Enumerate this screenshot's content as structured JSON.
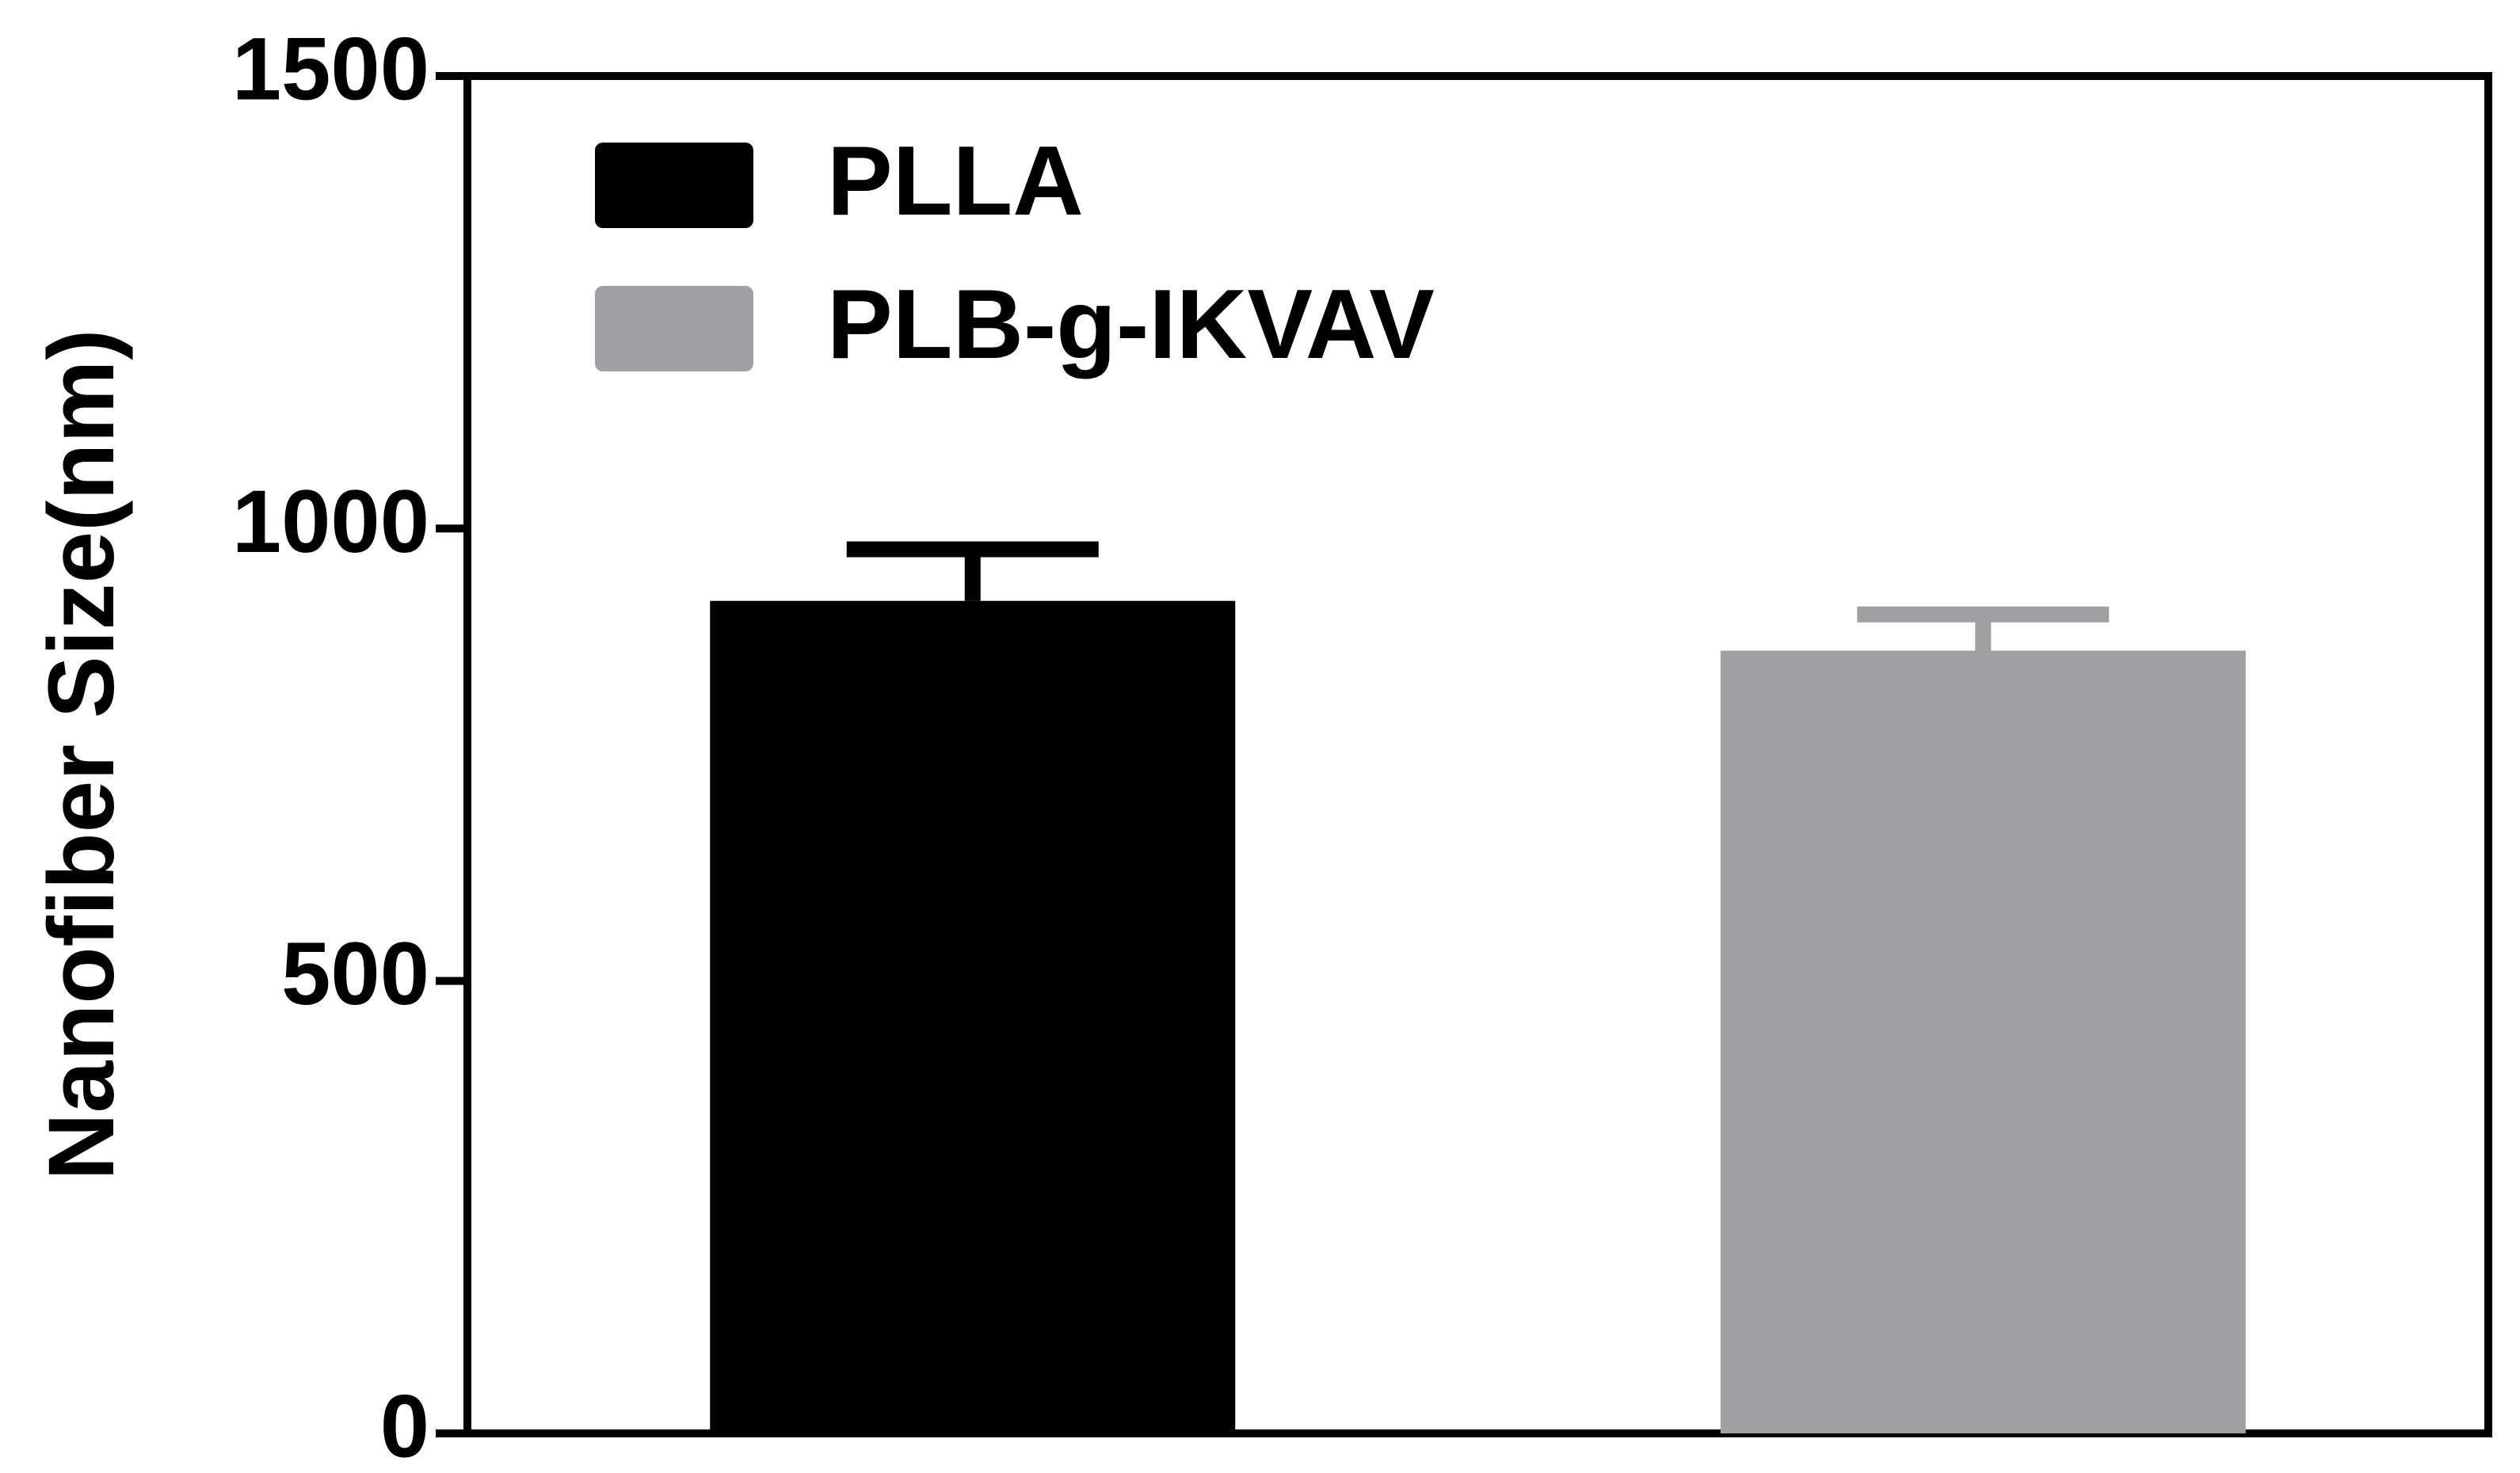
{
  "chart_data": {
    "type": "bar",
    "y_label": "Nanofiber Size(nm)",
    "categories": [
      null
    ],
    "series": [
      {
        "name": "PLLA",
        "color": "#000000",
        "values": [
          920
        ],
        "errors": [
          57
        ]
      },
      {
        "name": "PLB-g-IKVAV",
        "color": "#a0a0a4",
        "values": [
          865
        ],
        "errors": [
          40
        ]
      }
    ],
    "ylim": [
      0,
      1500
    ],
    "yticks": [
      0,
      500,
      1000,
      1500
    ],
    "legend": "upper left",
    "grid": false
  }
}
